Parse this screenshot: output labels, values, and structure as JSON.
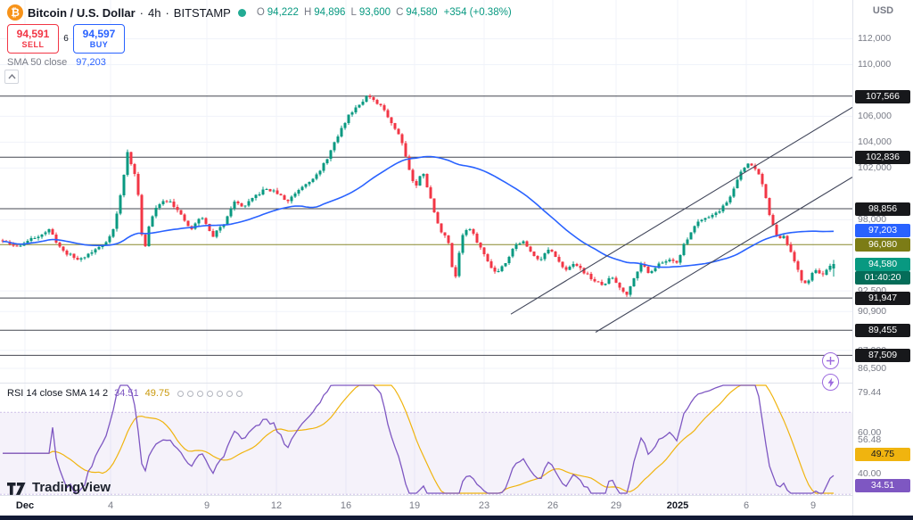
{
  "icons": {
    "btc": "₿"
  },
  "top_right": {
    "currency": "USD"
  },
  "header": {
    "symbol": "Bitcoin / U.S. Dollar",
    "sep": "·",
    "interval": "4h",
    "exchange": "BITSTAMP",
    "ohlc": {
      "o_label": "O",
      "o": "94,222",
      "h_label": "H",
      "h": "94,896",
      "l_label": "L",
      "l": "93,600",
      "c_label": "C",
      "c": "94,580",
      "change": "+354 (+0.38%)"
    },
    "sell": {
      "price": "94,591",
      "label": "SELL"
    },
    "buy": {
      "price": "94,597",
      "label": "BUY"
    },
    "spread": "6",
    "sma_row": {
      "name": "SMA 50 close",
      "value": "97,203"
    }
  },
  "rsi_header": {
    "name": "RSI 14 close SMA 14 2",
    "value_rsi": "34.51",
    "value_sma": "49.75"
  },
  "logo": {
    "text": "TradingView"
  },
  "colors": {
    "up": "#089981",
    "down": "#f23645",
    "sma": "#2962ff",
    "grid": "#f0f3fa",
    "level": "#30343e",
    "olive": "#7c7c16",
    "trend": "#41465296",
    "rsi": "#7e57c2",
    "rsi_sma": "#f0b40f",
    "rsi_band": "rgba(126,87,194,0.08)",
    "rsi_band_line": "rgba(126,87,194,0.35)",
    "badge_dark": "#17181b",
    "badge_blue": "#2962ff",
    "badge_green": "#089981",
    "badge_green_dark": "#056d59",
    "badge_olive": "#7c7c16",
    "badge_purple": "#7e57c2",
    "badge_yellow": "#f0b40f"
  },
  "chart_data": {
    "type": "candlestick",
    "title": "Bitcoin / U.S. Dollar · 4h · BITSTAMP",
    "symbol": "BTCUSD",
    "interval": "4h",
    "exchange": "BITSTAMP",
    "current_ohlc": {
      "open": 94222,
      "high": 94896,
      "low": 93600,
      "close": 94580,
      "change": 354,
      "change_pct": 0.38
    },
    "indicators": {
      "sma50_close": 97203,
      "rsi14_close": 34.51,
      "rsi_sma14": 49.75
    },
    "ylim": [
      85700,
      115000
    ],
    "price_path": [
      [
        0,
        96400
      ],
      [
        18,
        95900
      ],
      [
        38,
        96600
      ],
      [
        55,
        97200
      ],
      [
        70,
        95600
      ],
      [
        88,
        94900
      ],
      [
        105,
        95600
      ],
      [
        118,
        96200
      ],
      [
        128,
        97400
      ],
      [
        136,
        100200
      ],
      [
        143,
        103200
      ],
      [
        150,
        101800
      ],
      [
        156,
        99600
      ],
      [
        161,
        95200
      ],
      [
        168,
        97800
      ],
      [
        178,
        99300
      ],
      [
        190,
        99600
      ],
      [
        202,
        98400
      ],
      [
        214,
        97200
      ],
      [
        226,
        98300
      ],
      [
        238,
        96700
      ],
      [
        250,
        97600
      ],
      [
        262,
        99400
      ],
      [
        274,
        99000
      ],
      [
        286,
        99800
      ],
      [
        298,
        100400
      ],
      [
        310,
        100100
      ],
      [
        322,
        99400
      ],
      [
        334,
        100300
      ],
      [
        346,
        101000
      ],
      [
        358,
        101600
      ],
      [
        370,
        103200
      ],
      [
        382,
        104900
      ],
      [
        392,
        106200
      ],
      [
        402,
        106900
      ],
      [
        412,
        107600
      ],
      [
        420,
        107100
      ],
      [
        430,
        106600
      ],
      [
        440,
        105400
      ],
      [
        450,
        104300
      ],
      [
        458,
        102100
      ],
      [
        466,
        100400
      ],
      [
        474,
        101900
      ],
      [
        482,
        99800
      ],
      [
        492,
        97400
      ],
      [
        502,
        96500
      ],
      [
        510,
        93200
      ],
      [
        518,
        96800
      ],
      [
        526,
        97400
      ],
      [
        536,
        96200
      ],
      [
        546,
        94900
      ],
      [
        556,
        93900
      ],
      [
        566,
        94600
      ],
      [
        576,
        95900
      ],
      [
        586,
        96400
      ],
      [
        596,
        95400
      ],
      [
        606,
        94900
      ],
      [
        616,
        95800
      ],
      [
        626,
        94700
      ],
      [
        636,
        94200
      ],
      [
        646,
        94600
      ],
      [
        656,
        93900
      ],
      [
        666,
        93300
      ],
      [
        676,
        92900
      ],
      [
        686,
        93600
      ],
      [
        696,
        92700
      ],
      [
        704,
        92200
      ],
      [
        712,
        93800
      ],
      [
        720,
        94600
      ],
      [
        728,
        93900
      ],
      [
        736,
        94400
      ],
      [
        744,
        94700
      ],
      [
        752,
        95000
      ],
      [
        760,
        94700
      ],
      [
        768,
        96200
      ],
      [
        776,
        97200
      ],
      [
        784,
        98000
      ],
      [
        792,
        98200
      ],
      [
        800,
        98400
      ],
      [
        808,
        98800
      ],
      [
        816,
        99400
      ],
      [
        824,
        100600
      ],
      [
        832,
        101800
      ],
      [
        840,
        102400
      ],
      [
        848,
        101900
      ],
      [
        856,
        100700
      ],
      [
        862,
        98600
      ],
      [
        868,
        97300
      ],
      [
        874,
        96400
      ],
      [
        880,
        96700
      ],
      [
        886,
        95600
      ],
      [
        892,
        94600
      ],
      [
        898,
        93400
      ],
      [
        904,
        93000
      ],
      [
        910,
        93800
      ],
      [
        916,
        94100
      ],
      [
        924,
        93700
      ],
      [
        930,
        94300
      ],
      [
        936,
        94580
      ]
    ],
    "levels": [
      {
        "label": "107,566",
        "price": 107566,
        "color": "dark"
      },
      {
        "label": "102,836",
        "price": 102836,
        "color": "dark"
      },
      {
        "label": "98,856",
        "price": 98856,
        "color": "dark"
      },
      {
        "label": "96,080",
        "price": 96080,
        "color": "olive"
      },
      {
        "label": "91,947",
        "price": 91947,
        "color": "dark"
      },
      {
        "label": "89,455",
        "price": 89455,
        "color": "dark"
      },
      {
        "label": "87,509",
        "price": 87509,
        "color": "dark"
      }
    ],
    "trend_lines": [
      {
        "x1": 573,
        "p1": 90700,
        "x2": 956,
        "p2": 106700
      },
      {
        "x1": 668,
        "p1": 89300,
        "x2": 956,
        "p2": 101300
      }
    ],
    "sma_badge": {
      "label": "97,203",
      "price": 97203
    },
    "last_badge": {
      "label": "94,580",
      "price": 94580,
      "countdown": "01:40:20"
    },
    "y_axis": {
      "ticks": [
        {
          "label": "112,000",
          "price": 112000
        },
        {
          "label": "110,000",
          "price": 110000
        },
        {
          "label": "106,000",
          "price": 106000
        },
        {
          "label": "104,000",
          "price": 104000
        },
        {
          "label": "102,000",
          "price": 102000
        },
        {
          "label": "98,000",
          "price": 98000
        },
        {
          "label": "92,500",
          "price": 92500
        },
        {
          "label": "90,900",
          "price": 90900
        },
        {
          "label": "87,900",
          "price": 87900
        },
        {
          "label": "86,500",
          "price": 86500
        }
      ]
    },
    "x_axis": {
      "ticks": [
        {
          "label": "Dec",
          "x": 28,
          "strong": true
        },
        {
          "label": "4",
          "x": 124
        },
        {
          "label": "9",
          "x": 232
        },
        {
          "label": "12",
          "x": 310
        },
        {
          "label": "16",
          "x": 388
        },
        {
          "label": "19",
          "x": 465
        },
        {
          "label": "23",
          "x": 543
        },
        {
          "label": "26",
          "x": 620
        },
        {
          "label": "29",
          "x": 691
        },
        {
          "label": "2025",
          "x": 760,
          "strong": true
        },
        {
          "label": "6",
          "x": 837
        },
        {
          "label": "9",
          "x": 912
        }
      ]
    },
    "rsi": {
      "period": 14,
      "source": "close",
      "sma_period": 14,
      "current": 34.51,
      "sma_current": 49.75,
      "band": [
        30,
        70
      ],
      "ticks": [
        {
          "label": "79.44",
          "value": 79.44
        },
        {
          "label": "60.00",
          "value": 60
        },
        {
          "label": "56.48",
          "value": 56.48
        },
        {
          "label": "40.00",
          "value": 40
        }
      ],
      "badges": [
        {
          "label": "49.75",
          "value": 49.75,
          "color": "yellow"
        },
        {
          "label": "34.51",
          "value": 34.51,
          "color": "purple"
        }
      ]
    }
  }
}
